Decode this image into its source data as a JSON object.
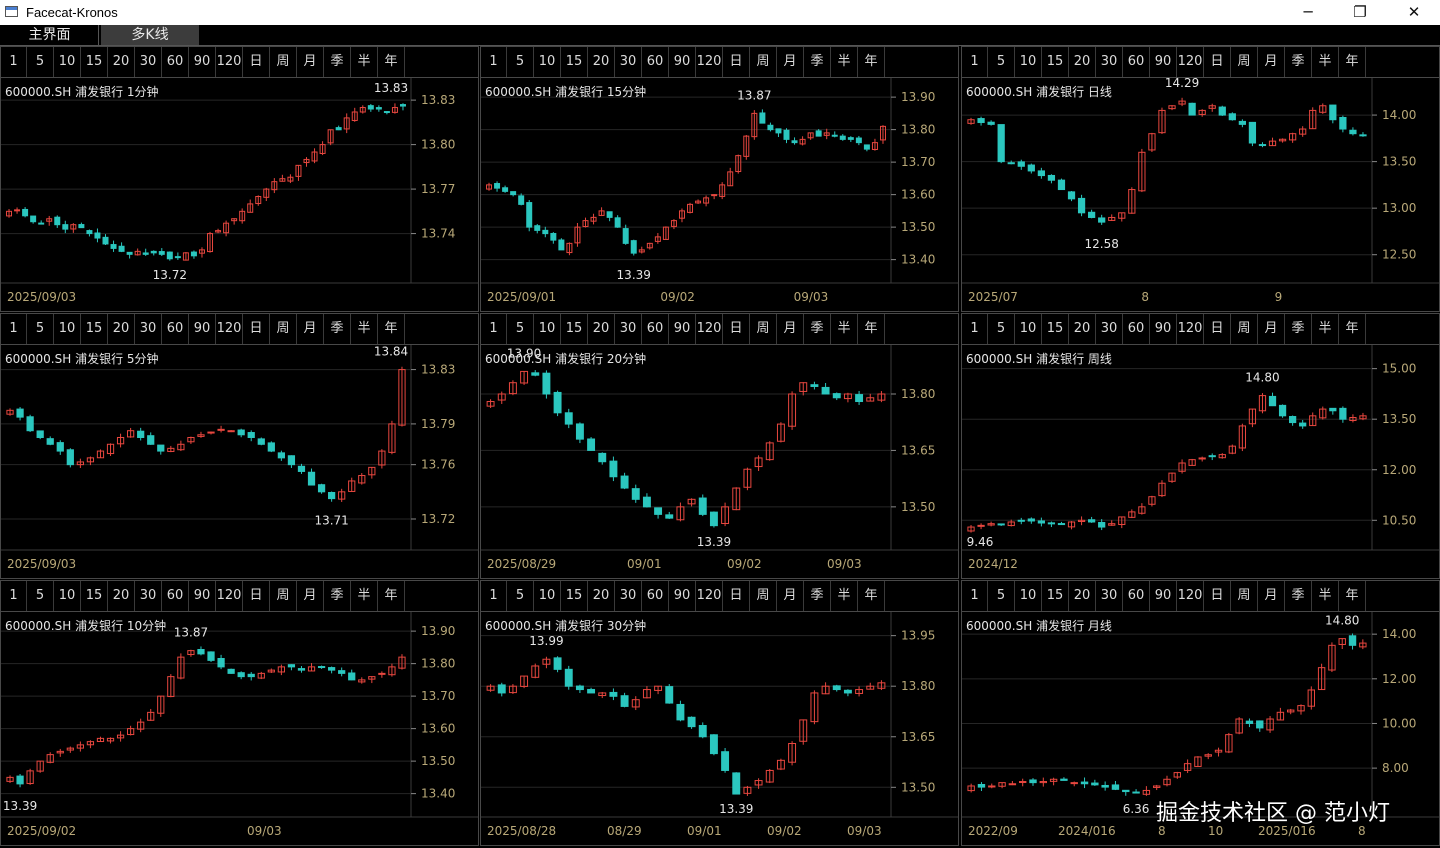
{
  "window": {
    "title": "Facecat-Kronos",
    "minimize_symbol": "─",
    "maximize_symbol": "❐",
    "close_symbol": "✕"
  },
  "tabs": [
    {
      "label": "主界面",
      "active": false
    },
    {
      "label": "多K线",
      "active": true
    }
  ],
  "period_buttons": [
    "1",
    "5",
    "10",
    "15",
    "20",
    "30",
    "60",
    "90",
    "120",
    "日",
    "周",
    "月",
    "季",
    "半",
    "年"
  ],
  "watermark": "掘金技术社区 @ 范小灯",
  "colors": {
    "up": "#e8473f",
    "down": "#2bc7bf",
    "grid": "#3a3a3a",
    "axis_text": "#b8a878",
    "label_text": "#e6e6e6"
  },
  "panels": [
    {
      "title": "600000.SH 浦发银行 1分钟",
      "high_label": "13.83",
      "low_label": "13.72",
      "chart_data": {
        "type": "candlestick",
        "y_ticks": [
          13.74,
          13.77,
          13.8,
          13.83
        ],
        "x_labels": [
          "2025/09/03"
        ],
        "closes": [
          13.755,
          13.756,
          13.752,
          13.748,
          13.747,
          13.75,
          13.746,
          13.743,
          13.746,
          13.744,
          13.74,
          13.737,
          13.733,
          13.73,
          13.728,
          13.726,
          13.728,
          13.726,
          13.727,
          13.726,
          13.723,
          13.724,
          13.727,
          13.725,
          13.729,
          13.74,
          13.742,
          13.747,
          13.75,
          13.755,
          13.76,
          13.765,
          13.77,
          13.775,
          13.777,
          13.778,
          13.786,
          13.79,
          13.795,
          13.8,
          13.81,
          13.81,
          13.818,
          13.822,
          13.825,
          13.824,
          13.824,
          13.822,
          13.825,
          13.826
        ]
      }
    },
    {
      "title": "600000.SH 浦发银行 15分钟",
      "high_label": "13.87",
      "low_label": "13.39",
      "chart_data": {
        "type": "candlestick",
        "y_ticks": [
          13.4,
          13.5,
          13.6,
          13.7,
          13.8,
          13.9
        ],
        "x_labels": [
          "2025/09/01",
          "09/02",
          "09/03"
        ],
        "closes": [
          13.63,
          13.62,
          13.61,
          13.6,
          13.57,
          13.5,
          13.49,
          13.48,
          13.46,
          13.43,
          13.45,
          13.5,
          13.52,
          13.53,
          13.55,
          13.53,
          13.5,
          13.45,
          13.42,
          13.43,
          13.45,
          13.47,
          13.5,
          13.52,
          13.55,
          13.57,
          13.58,
          13.59,
          13.6,
          13.63,
          13.67,
          13.72,
          13.78,
          13.85,
          13.82,
          13.8,
          13.79,
          13.77,
          13.76,
          13.77,
          13.79,
          13.78,
          13.79,
          13.78,
          13.77,
          13.77,
          13.76,
          13.74,
          13.76,
          13.81
        ]
      }
    },
    {
      "title": "600000.SH 浦发银行 日线",
      "high_label": "14.29",
      "low_label": "12.58",
      "chart_data": {
        "type": "candlestick",
        "y_ticks": [
          12.5,
          13.0,
          13.5,
          14.0
        ],
        "x_labels": [
          "2025/07",
          "8",
          "9"
        ],
        "closes": [
          13.95,
          13.92,
          13.9,
          13.5,
          13.48,
          13.45,
          13.4,
          13.35,
          13.3,
          13.2,
          13.1,
          12.95,
          12.9,
          12.85,
          12.9,
          12.95,
          13.2,
          13.6,
          13.8,
          14.05,
          14.1,
          14.15,
          14.0,
          14.05,
          14.1,
          14.0,
          13.95,
          13.9,
          13.7,
          13.68,
          13.72,
          13.74,
          13.8,
          13.85,
          14.05,
          14.1,
          13.95,
          13.85,
          13.8,
          13.78
        ]
      }
    },
    {
      "title": "600000.SH 浦发银行 5分钟",
      "high_label": "13.84",
      "low_label": "13.71",
      "chart_data": {
        "type": "candlestick",
        "y_ticks": [
          13.72,
          13.76,
          13.79,
          13.83
        ],
        "x_labels": [
          "2025/09/03"
        ],
        "closes": [
          13.8,
          13.795,
          13.785,
          13.78,
          13.775,
          13.77,
          13.76,
          13.762,
          13.765,
          13.77,
          13.775,
          13.78,
          13.785,
          13.78,
          13.775,
          13.77,
          13.772,
          13.775,
          13.78,
          13.782,
          13.784,
          13.786,
          13.785,
          13.782,
          13.78,
          13.775,
          13.77,
          13.765,
          13.76,
          13.755,
          13.745,
          13.74,
          13.735,
          13.74,
          13.748,
          13.752,
          13.758,
          13.77,
          13.79,
          13.83
        ]
      }
    },
    {
      "title": "600000.SH 浦发银行 20分钟",
      "high_label": "13.90",
      "low_label": "13.39",
      "chart_data": {
        "type": "candlestick",
        "y_ticks": [
          13.5,
          13.65,
          13.8
        ],
        "x_labels": [
          "2025/08/29",
          "09/01",
          "09/02",
          "09/03"
        ],
        "closes": [
          13.78,
          13.8,
          13.83,
          13.86,
          13.85,
          13.8,
          13.75,
          13.72,
          13.68,
          13.65,
          13.62,
          13.58,
          13.55,
          13.52,
          13.5,
          13.48,
          13.47,
          13.5,
          13.52,
          13.48,
          13.45,
          13.5,
          13.55,
          13.6,
          13.63,
          13.67,
          13.72,
          13.8,
          13.83,
          13.82,
          13.8,
          13.79,
          13.8,
          13.78,
          13.79,
          13.8
        ]
      }
    },
    {
      "title": "600000.SH 浦发银行 周线",
      "high_label": "14.80",
      "low_label": "9.46",
      "chart_data": {
        "type": "candlestick",
        "y_ticks": [
          10.5,
          12.0,
          13.5,
          15.0
        ],
        "x_labels": [
          "2024/12"
        ],
        "closes": [
          10.3,
          10.35,
          10.4,
          10.38,
          10.45,
          10.5,
          10.48,
          10.42,
          10.4,
          10.38,
          10.45,
          10.5,
          10.45,
          10.3,
          10.4,
          10.6,
          10.75,
          10.9,
          11.2,
          11.6,
          11.9,
          12.2,
          12.3,
          12.35,
          12.4,
          12.45,
          12.7,
          13.3,
          13.8,
          14.2,
          13.9,
          13.6,
          13.4,
          13.3,
          13.6,
          13.8,
          13.75,
          13.5,
          13.55,
          13.6
        ]
      }
    },
    {
      "title": "600000.SH 浦发银行 10分钟",
      "high_label": "13.87",
      "low_label": "13.39",
      "chart_data": {
        "type": "candlestick",
        "y_ticks": [
          13.4,
          13.5,
          13.6,
          13.7,
          13.8,
          13.9
        ],
        "x_labels": [
          "2025/09/02",
          "09/03"
        ],
        "closes": [
          13.45,
          13.43,
          13.47,
          13.5,
          13.52,
          13.53,
          13.54,
          13.55,
          13.56,
          13.57,
          13.57,
          13.58,
          13.6,
          13.62,
          13.65,
          13.7,
          13.76,
          13.82,
          13.84,
          13.83,
          13.81,
          13.79,
          13.77,
          13.76,
          13.76,
          13.77,
          13.78,
          13.79,
          13.79,
          13.78,
          13.79,
          13.79,
          13.78,
          13.77,
          13.75,
          13.75,
          13.76,
          13.77,
          13.79,
          13.82
        ]
      }
    },
    {
      "title": "600000.SH 浦发银行 30分钟",
      "high_label": "13.99",
      "low_label": "13.39",
      "chart_data": {
        "type": "candlestick",
        "y_ticks": [
          13.5,
          13.65,
          13.8,
          13.95
        ],
        "x_labels": [
          "2025/08/28",
          "08/29",
          "09/01",
          "09/02",
          "09/03"
        ],
        "closes": [
          13.8,
          13.78,
          13.8,
          13.83,
          13.86,
          13.88,
          13.85,
          13.8,
          13.79,
          13.78,
          13.78,
          13.77,
          13.74,
          13.76,
          13.79,
          13.8,
          13.75,
          13.7,
          13.68,
          13.65,
          13.6,
          13.55,
          13.48,
          13.5,
          13.52,
          13.55,
          13.58,
          13.63,
          13.7,
          13.78,
          13.8,
          13.79,
          13.78,
          13.79,
          13.8,
          13.81
        ]
      }
    },
    {
      "title": "600000.SH 浦发银行 月线",
      "high_label": "14.80",
      "low_label": "6.36",
      "chart_data": {
        "type": "candlestick",
        "y_ticks": [
          8.0,
          10.0,
          12.0,
          14.0
        ],
        "x_labels": [
          "2022/09",
          "2024/01",
          "6",
          "8",
          "10",
          "2025/01",
          "6",
          "8"
        ],
        "closes": [
          7.2,
          7.15,
          7.2,
          7.35,
          7.3,
          7.4,
          7.35,
          7.4,
          7.5,
          7.45,
          7.35,
          7.3,
          7.25,
          7.15,
          7.05,
          6.95,
          6.9,
          7.0,
          7.2,
          7.5,
          7.8,
          8.2,
          8.5,
          8.6,
          8.8,
          9.5,
          10.2,
          10.0,
          9.8,
          10.2,
          10.5,
          10.6,
          10.8,
          11.5,
          12.5,
          13.5,
          13.8,
          13.5,
          13.6
        ]
      }
    }
  ]
}
